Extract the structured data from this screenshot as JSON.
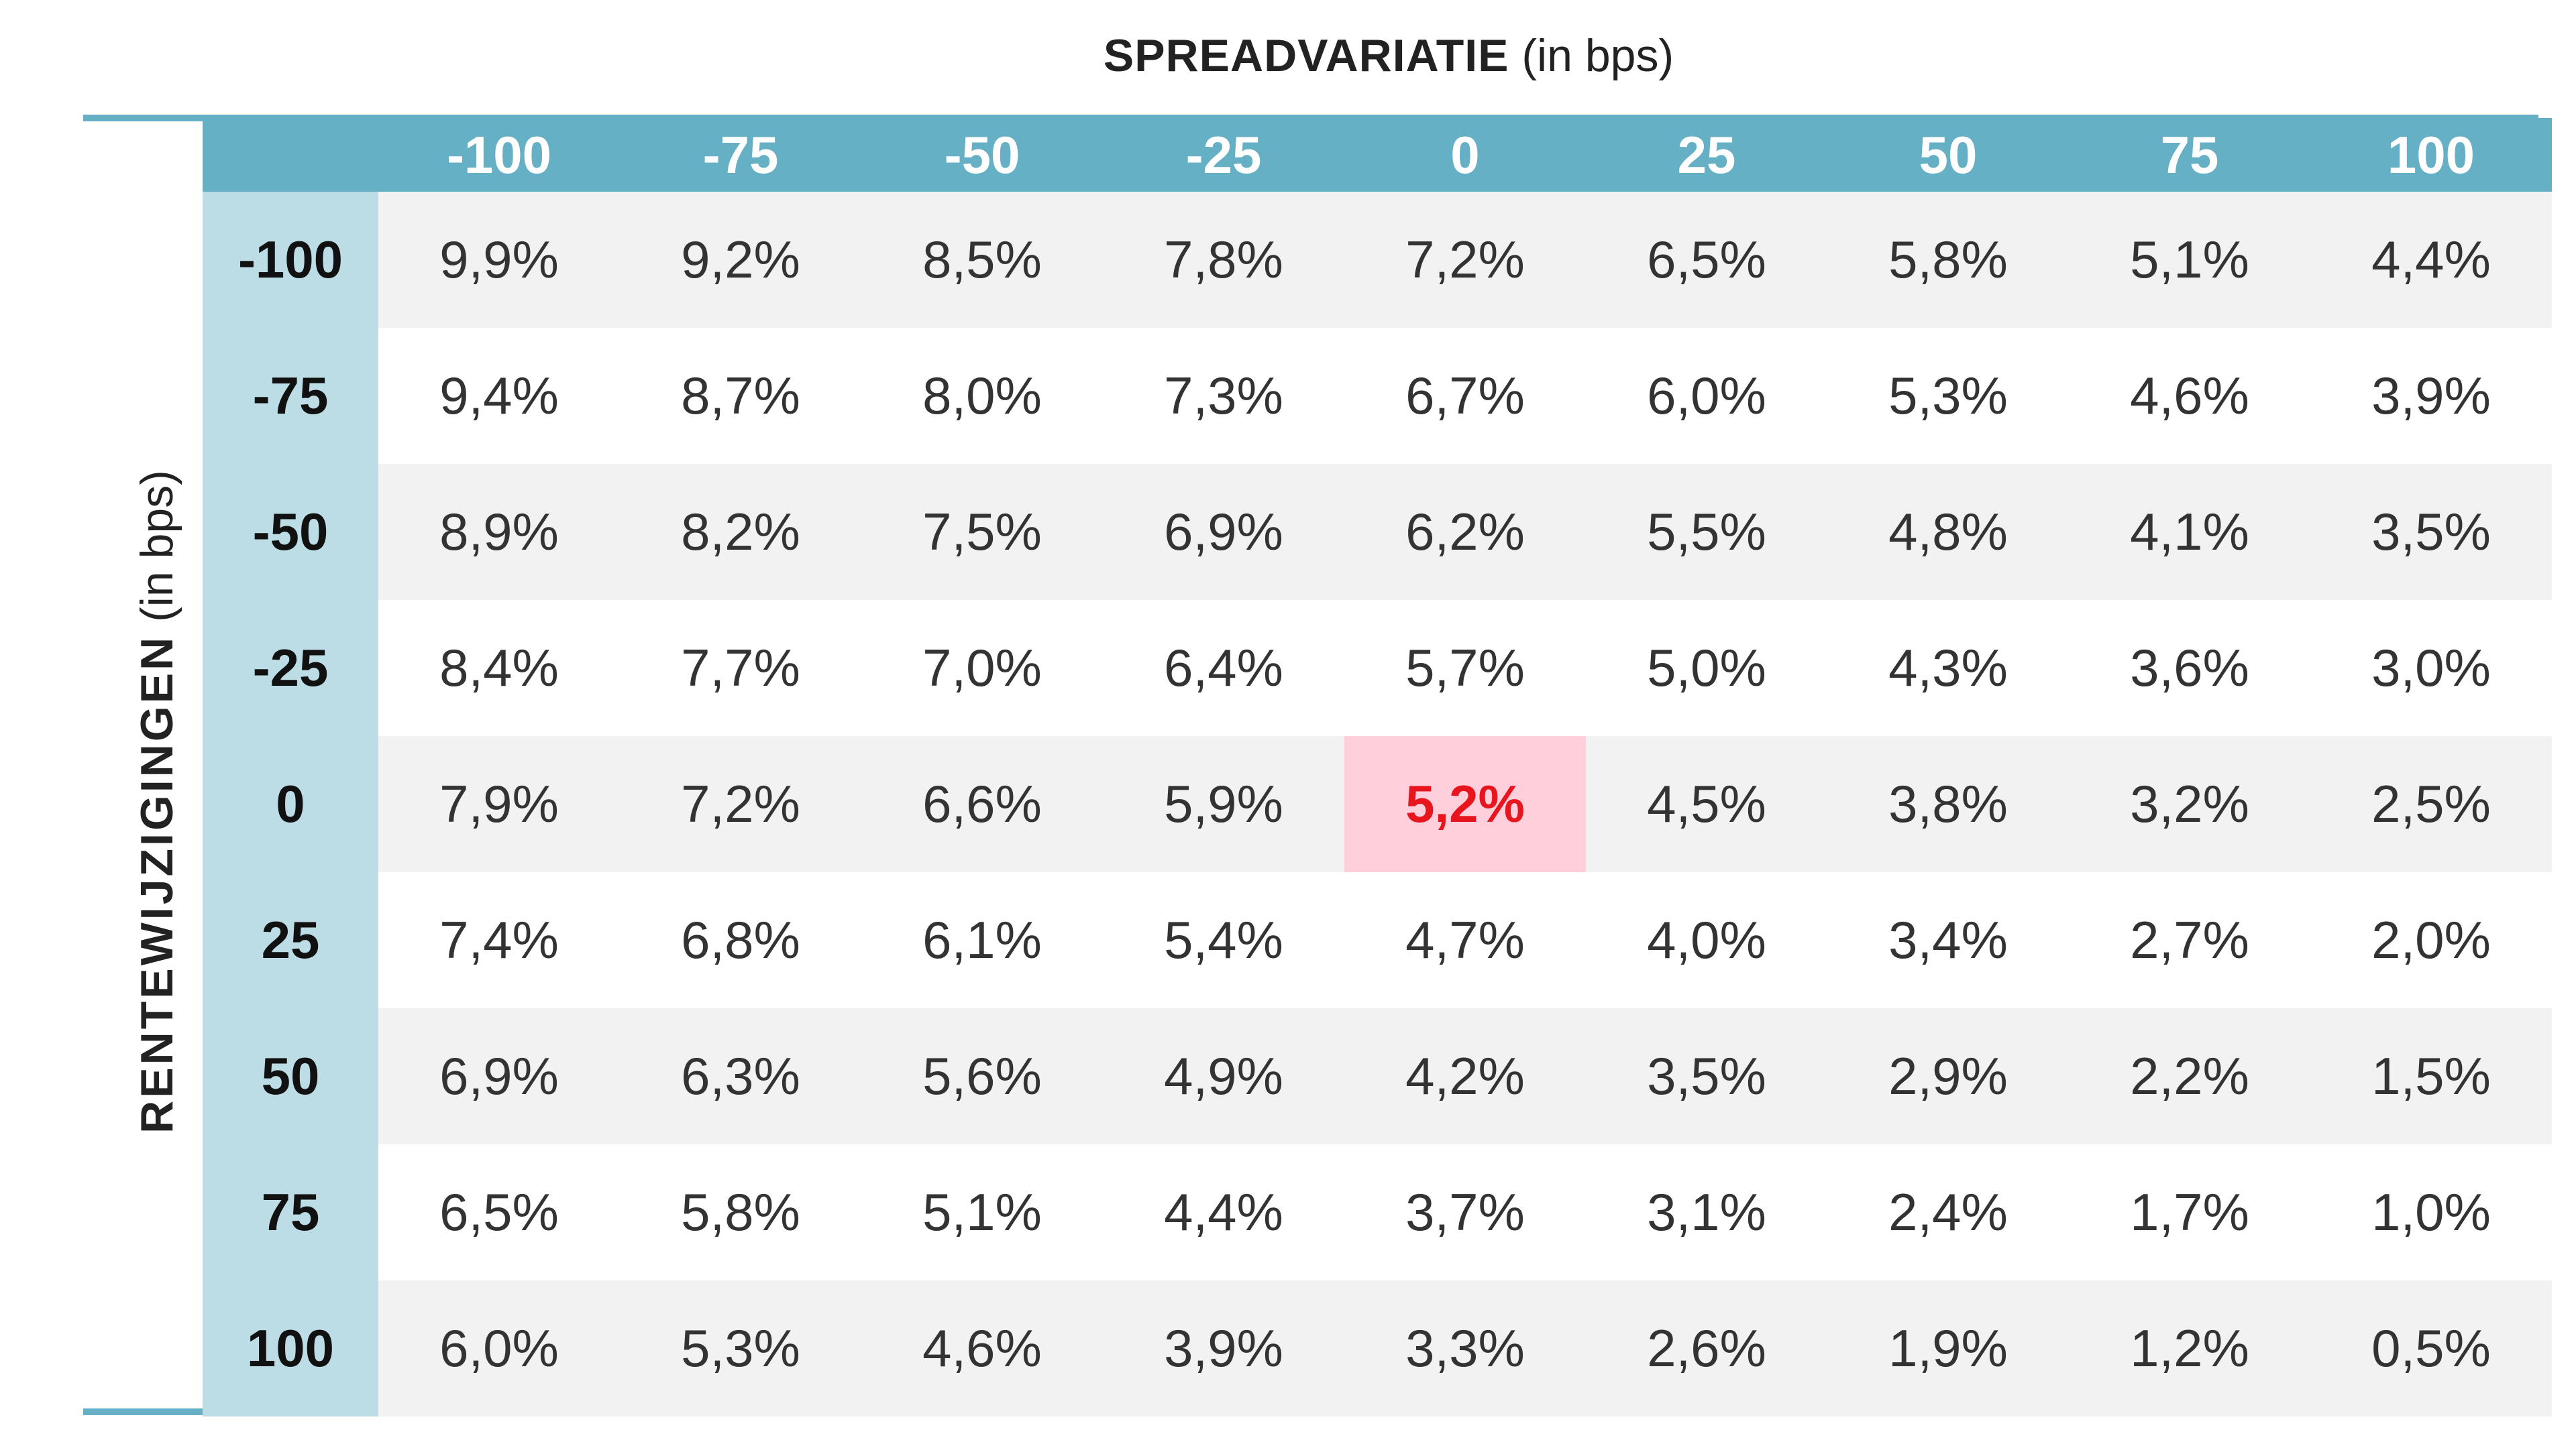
{
  "colors": {
    "header_band": "#66b0c6",
    "row_header_band": "#bcdde6",
    "rule": "#66b0c6",
    "row_shade": "#f2f2f2",
    "highlight_bg": "#ffcfdb",
    "highlight_text": "#e8141e"
  },
  "top_title": {
    "strong": "SPREADVARIATIE",
    "rest": " (in bps)"
  },
  "side_title": {
    "strong": "RENTEWIJZIGINGEN",
    "rest": " (in bps)"
  },
  "chart_data": {
    "type": "table",
    "column_title": "SPREADVARIATIE (in bps)",
    "row_title": "RENTEWIJZIGINGEN (in bps)",
    "columns": [
      "-100",
      "-75",
      "-50",
      "-25",
      "0",
      "25",
      "50",
      "75",
      "100"
    ],
    "rows": [
      "-100",
      "-75",
      "-50",
      "-25",
      "0",
      "25",
      "50",
      "75",
      "100"
    ],
    "cells": [
      [
        "9,9%",
        "9,2%",
        "8,5%",
        "7,8%",
        "7,2%",
        "6,5%",
        "5,8%",
        "5,1%",
        "4,4%"
      ],
      [
        "9,4%",
        "8,7%",
        "8,0%",
        "7,3%",
        "6,7%",
        "6,0%",
        "5,3%",
        "4,6%",
        "3,9%"
      ],
      [
        "8,9%",
        "8,2%",
        "7,5%",
        "6,9%",
        "6,2%",
        "5,5%",
        "4,8%",
        "4,1%",
        "3,5%"
      ],
      [
        "8,4%",
        "7,7%",
        "7,0%",
        "6,4%",
        "5,7%",
        "5,0%",
        "4,3%",
        "3,6%",
        "3,0%"
      ],
      [
        "7,9%",
        "7,2%",
        "6,6%",
        "5,9%",
        "5,2%",
        "4,5%",
        "3,8%",
        "3,2%",
        "2,5%"
      ],
      [
        "7,4%",
        "6,8%",
        "6,1%",
        "5,4%",
        "4,7%",
        "4,0%",
        "3,4%",
        "2,7%",
        "2,0%"
      ],
      [
        "6,9%",
        "6,3%",
        "5,6%",
        "4,9%",
        "4,2%",
        "3,5%",
        "2,9%",
        "2,2%",
        "1,5%"
      ],
      [
        "6,5%",
        "5,8%",
        "5,1%",
        "4,4%",
        "3,7%",
        "3,1%",
        "2,4%",
        "1,7%",
        "1,0%"
      ],
      [
        "6,0%",
        "5,3%",
        "4,6%",
        "3,9%",
        "3,3%",
        "2,6%",
        "1,9%",
        "1,2%",
        "0,5%"
      ]
    ],
    "highlight": {
      "row": "0",
      "column": "0",
      "value": "5,2%"
    }
  }
}
